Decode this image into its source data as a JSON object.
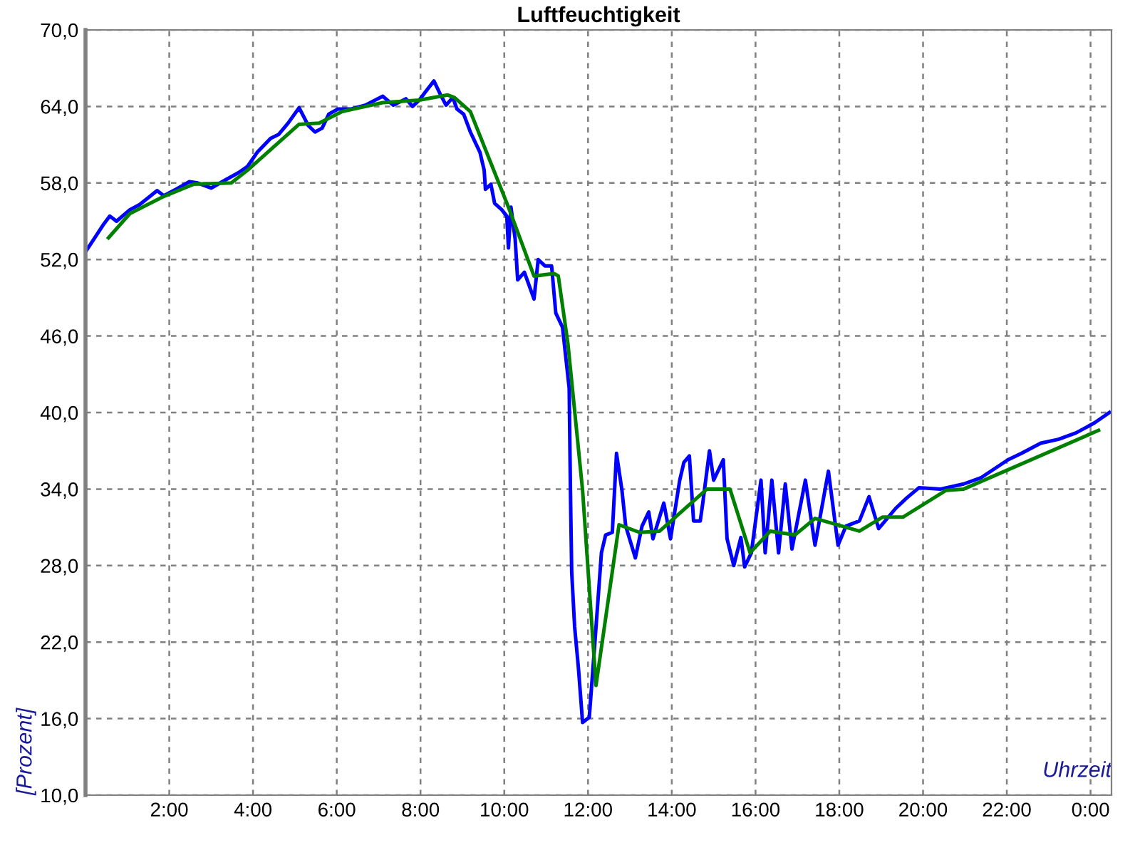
{
  "chart_data": {
    "type": "line",
    "title": "Luftfeuchtigkeit",
    "xlabel": "Uhrzeit",
    "ylabel": "[Prozent]",
    "xlim": [
      0,
      24.5
    ],
    "ylim": [
      10,
      70
    ],
    "xticks": [
      {
        "value": 0,
        "label": null
      },
      {
        "value": 2,
        "label": "2:00"
      },
      {
        "value": 4,
        "label": "4:00"
      },
      {
        "value": 6,
        "label": "6:00"
      },
      {
        "value": 8,
        "label": "8:00"
      },
      {
        "value": 10,
        "label": "10:00"
      },
      {
        "value": 12,
        "label": "12:00"
      },
      {
        "value": 14,
        "label": "14:00"
      },
      {
        "value": 16,
        "label": "16:00"
      },
      {
        "value": 18,
        "label": "18:00"
      },
      {
        "value": 20,
        "label": "20:00"
      },
      {
        "value": 22,
        "label": "22:00"
      },
      {
        "value": 24,
        "label": "0:00"
      }
    ],
    "yticks": [
      {
        "value": 10,
        "label": "10,0"
      },
      {
        "value": 16,
        "label": "16,0"
      },
      {
        "value": 22,
        "label": "22,0"
      },
      {
        "value": 28,
        "label": "28,0"
      },
      {
        "value": 34,
        "label": "34,0"
      },
      {
        "value": 40,
        "label": "40,0"
      },
      {
        "value": 46,
        "label": "46,0"
      },
      {
        "value": 52,
        "label": "52,0"
      },
      {
        "value": 58,
        "label": "58,0"
      },
      {
        "value": 64,
        "label": "64,0"
      },
      {
        "value": 70,
        "label": "70,0"
      }
    ],
    "grid": true,
    "line_style": "solid",
    "marker": "none",
    "series": [
      {
        "color": "#0000ff",
        "x": [
          0,
          0.42,
          0.58,
          0.74,
          1.06,
          1.29,
          1.52,
          1.71,
          1.87,
          2.16,
          2.48,
          2.68,
          3.0,
          3.32,
          3.65,
          3.87,
          4.1,
          4.42,
          4.61,
          4.84,
          5.1,
          5.32,
          5.48,
          5.65,
          5.81,
          6.03,
          6.35,
          6.68,
          7.1,
          7.35,
          7.65,
          7.81,
          7.97,
          8.13,
          8.32,
          8.48,
          8.61,
          8.77,
          8.87,
          9.03,
          9.19,
          9.42,
          9.52,
          9.55,
          9.68,
          9.77,
          9.94,
          10.06,
          10.1,
          10.16,
          10.26,
          10.32,
          10.48,
          10.71,
          10.81,
          10.97,
          11.13,
          11.23,
          11.39,
          11.55,
          11.58,
          11.61,
          11.68,
          11.77,
          11.87,
          12.03,
          12.16,
          12.32,
          12.42,
          12.58,
          12.68,
          12.81,
          12.9,
          13.13,
          13.29,
          13.45,
          13.55,
          13.81,
          13.97,
          14.19,
          14.29,
          14.42,
          14.52,
          14.68,
          14.74,
          14.9,
          15.0,
          15.23,
          15.32,
          15.48,
          15.65,
          15.74,
          15.9,
          16.13,
          16.23,
          16.39,
          16.55,
          16.71,
          16.87,
          17.19,
          17.42,
          17.74,
          17.97,
          18.16,
          18.48,
          18.71,
          18.94,
          19.35,
          19.61,
          19.9,
          20.42,
          20.97,
          21.39,
          22.03,
          22.35,
          22.81,
          23.23,
          23.65,
          24.1,
          24.45
        ],
        "values": [
          52.6,
          54.7,
          55.4,
          55.0,
          55.9,
          56.3,
          56.9,
          57.4,
          57.0,
          57.5,
          58.1,
          58.0,
          57.6,
          58.2,
          58.8,
          59.3,
          60.4,
          61.5,
          61.8,
          62.7,
          63.9,
          62.5,
          62.0,
          62.3,
          63.4,
          63.8,
          63.8,
          64.1,
          64.8,
          64.1,
          64.6,
          64.0,
          64.5,
          65.2,
          66.0,
          64.9,
          64.1,
          64.7,
          63.8,
          63.4,
          62.0,
          60.4,
          59.0,
          57.5,
          57.9,
          56.4,
          55.9,
          55.4,
          52.9,
          56.1,
          53.6,
          50.4,
          51.0,
          48.9,
          52.0,
          51.5,
          51.5,
          47.8,
          46.7,
          41.9,
          33.9,
          27.5,
          23.2,
          20.0,
          15.7,
          16.1,
          21.8,
          29.0,
          30.4,
          30.6,
          36.8,
          33.9,
          31.1,
          28.6,
          31.1,
          32.2,
          30.1,
          32.9,
          30.1,
          34.7,
          36.1,
          36.6,
          31.5,
          31.5,
          32.9,
          37.0,
          34.7,
          36.3,
          30.1,
          28.0,
          30.2,
          27.9,
          29.0,
          34.7,
          29.0,
          34.7,
          29.0,
          34.4,
          29.3,
          34.7,
          29.6,
          35.4,
          29.6,
          31.1,
          31.5,
          33.4,
          30.9,
          32.5,
          33.3,
          34.1,
          34.0,
          34.4,
          34.9,
          36.3,
          36.8,
          37.6,
          37.9,
          38.4,
          39.2,
          40.0
        ]
      },
      {
        "color": "#008000",
        "x": [
          0.55,
          1.06,
          1.84,
          2.58,
          3.48,
          3.87,
          5.1,
          5.58,
          6.13,
          7.1,
          7.97,
          8.65,
          8.81,
          9.19,
          10.1,
          10.71,
          11.19,
          11.29,
          11.52,
          11.87,
          12.19,
          12.74,
          13.23,
          13.71,
          14.84,
          15.39,
          15.87,
          16.35,
          16.94,
          17.42,
          18.48,
          19.03,
          19.52,
          20.55,
          20.97,
          24.19
        ],
        "values": [
          53.7,
          55.6,
          56.9,
          57.9,
          58.0,
          59.0,
          62.6,
          62.7,
          63.6,
          64.3,
          64.5,
          64.9,
          64.7,
          63.6,
          56.1,
          50.7,
          50.9,
          50.7,
          45.4,
          33.9,
          18.6,
          31.2,
          30.6,
          30.7,
          34.0,
          34.0,
          29.0,
          30.7,
          30.4,
          31.7,
          30.7,
          31.8,
          31.8,
          33.9,
          34.0,
          38.6
        ]
      }
    ]
  }
}
